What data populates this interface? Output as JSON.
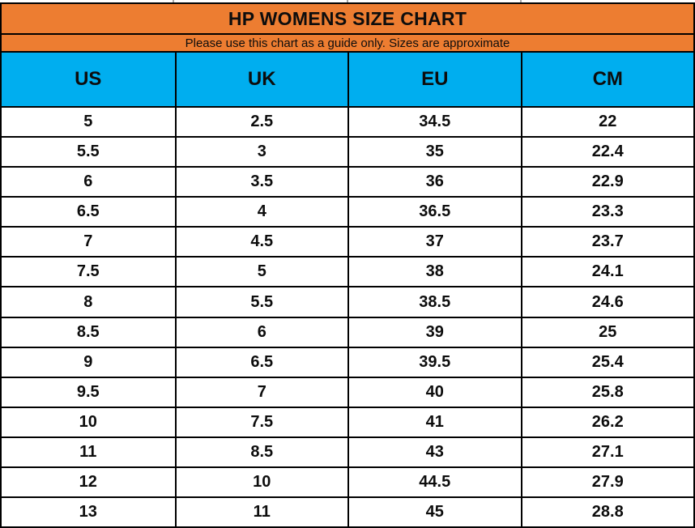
{
  "colors": {
    "orange": "#ED7D31",
    "blue": "#00AEEF",
    "gridline": "#000000"
  },
  "chart_data": {
    "type": "table",
    "title": "HP WOMENS SIZE CHART",
    "subtitle": "Please use this chart as a guide only. Sizes are approximate",
    "columns": [
      "US",
      "UK",
      "EU",
      "CM"
    ],
    "rows": [
      [
        "5",
        "2.5",
        "34.5",
        "22"
      ],
      [
        "5.5",
        "3",
        "35",
        "22.4"
      ],
      [
        "6",
        "3.5",
        "36",
        "22.9"
      ],
      [
        "6.5",
        "4",
        "36.5",
        "23.3"
      ],
      [
        "7",
        "4.5",
        "37",
        "23.7"
      ],
      [
        "7.5",
        "5",
        "38",
        "24.1"
      ],
      [
        "8",
        "5.5",
        "38.5",
        "24.6"
      ],
      [
        "8.5",
        "6",
        "39",
        "25"
      ],
      [
        "9",
        "6.5",
        "39.5",
        "25.4"
      ],
      [
        "9.5",
        "7",
        "40",
        "25.8"
      ],
      [
        "10",
        "7.5",
        "41",
        "26.2"
      ],
      [
        "11",
        "8.5",
        "43",
        "27.1"
      ],
      [
        "12",
        "10",
        "44.5",
        "27.9"
      ],
      [
        "13",
        "11",
        "45",
        "28.8"
      ]
    ]
  }
}
